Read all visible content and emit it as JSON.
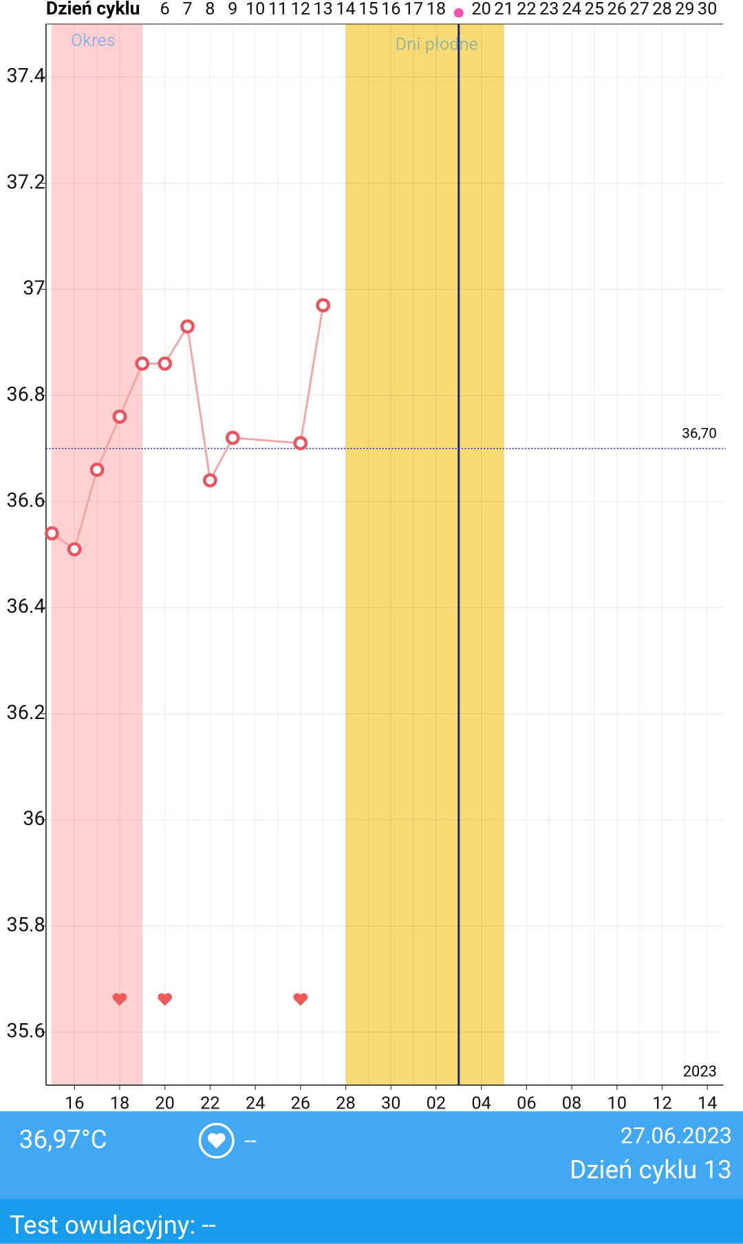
{
  "chart_data": {
    "type": "line",
    "x_title": "Dzień cyklu",
    "x": [
      1,
      2,
      3,
      4,
      5,
      6,
      7,
      8,
      9,
      12,
      13
    ],
    "series": [
      {
        "name": "Temperatura",
        "color": "#e8555f",
        "values": [
          36.54,
          36.51,
          36.66,
          36.76,
          36.86,
          36.86,
          36.93,
          36.64,
          36.72,
          36.71,
          36.97
        ]
      }
    ],
    "xlim": [
      0.74,
      30.7
    ],
    "ylim": [
      35.5,
      37.5
    ],
    "yticks": [
      35.6,
      35.8,
      36,
      36.2,
      36.4,
      36.6,
      36.8,
      37,
      37.2,
      37.4
    ],
    "xticks": [
      {
        "value": 2,
        "label": "16"
      },
      {
        "value": 4,
        "label": "18"
      },
      {
        "value": 6,
        "label": "20"
      },
      {
        "value": 8,
        "label": "22"
      },
      {
        "value": 10,
        "label": "24"
      },
      {
        "value": 12,
        "label": "26"
      },
      {
        "value": 14,
        "label": "28"
      },
      {
        "value": 16,
        "label": "30"
      },
      {
        "value": 18,
        "label": "02"
      },
      {
        "value": 20,
        "label": "04"
      },
      {
        "value": 22,
        "label": "06"
      },
      {
        "value": 24,
        "label": "08"
      },
      {
        "value": 26,
        "label": "10"
      },
      {
        "value": 28,
        "label": "12"
      },
      {
        "value": 30,
        "label": "14"
      }
    ],
    "x2ticks": [
      6,
      7,
      8,
      9,
      10,
      11,
      12,
      13,
      14,
      15,
      16,
      17,
      18,
      20,
      21,
      22,
      23,
      24,
      25,
      26,
      27,
      28,
      29,
      30
    ],
    "ovulation_day": 19,
    "bands": [
      {
        "label": "Okres",
        "range": [
          1,
          5
        ],
        "color": "#ffd1d1"
      },
      {
        "label": "Dni płodne",
        "range": [
          14,
          21
        ],
        "color": "#f8da72"
      }
    ],
    "reference_line": {
      "value": 36.7,
      "label": "36,70"
    },
    "intercourse_days": [
      4,
      6,
      12
    ],
    "year": "2023",
    "grid": true
  },
  "footer": {
    "temperature": "36,97°C",
    "intercourse": "--",
    "date": "27.06.2023",
    "cycle_day": "Dzień cyklu 13",
    "ovulation_test": "Test owulacyjny: --"
  }
}
